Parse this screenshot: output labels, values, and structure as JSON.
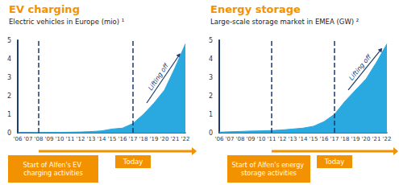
{
  "chart_data": [
    {
      "type": "area",
      "title": "EV charging",
      "subtitle": "Electric vehicles in Europe (mio) ¹",
      "categories": [
        "'06",
        "'07",
        "'08",
        "'09",
        "'10",
        "'11",
        "'12",
        "'13",
        "'14",
        "'15",
        "'16",
        "'17",
        "'18",
        "'19",
        "'20",
        "'21",
        "'22"
      ],
      "values": [
        0,
        0,
        0.01,
        0.01,
        0.02,
        0.03,
        0.04,
        0.06,
        0.1,
        0.2,
        0.25,
        0.5,
        1.0,
        1.6,
        2.3,
        3.5,
        4.8
      ],
      "color": "#2aa9e0",
      "ylim": [
        0,
        5
      ],
      "yticks": [
        0,
        1,
        2,
        3,
        4,
        5
      ],
      "grid": false,
      "annotations": [
        "Lifting off"
      ],
      "markers": [
        {
          "x": "'08",
          "label": "Start of Alfen's EV charging activities"
        },
        {
          "x": "'17",
          "label": "Today"
        }
      ]
    },
    {
      "type": "area",
      "title": "Energy storage",
      "subtitle": "Large-scale storage market in EMEA (GW) ²",
      "categories": [
        "'06",
        "'07",
        "'08",
        "'09",
        "'10",
        "'11",
        "'12",
        "'13",
        "'14",
        "'15",
        "'16",
        "'17",
        "'18",
        "'19",
        "'20",
        "'21",
        "'22"
      ],
      "values": [
        0.03,
        0.05,
        0.07,
        0.09,
        0.1,
        0.12,
        0.15,
        0.2,
        0.25,
        0.35,
        0.6,
        1.0,
        1.7,
        2.3,
        2.9,
        3.8,
        4.8
      ],
      "color": "#2aa9e0",
      "ylim": [
        0,
        5
      ],
      "yticks": [
        0,
        1,
        2,
        3,
        4,
        5
      ],
      "grid": false,
      "annotations": [
        "Lifting off"
      ],
      "markers": [
        {
          "x": "'11",
          "label": "Start of Alfen's energy storage activities"
        },
        {
          "x": "'17",
          "label": "Today"
        }
      ]
    }
  ]
}
